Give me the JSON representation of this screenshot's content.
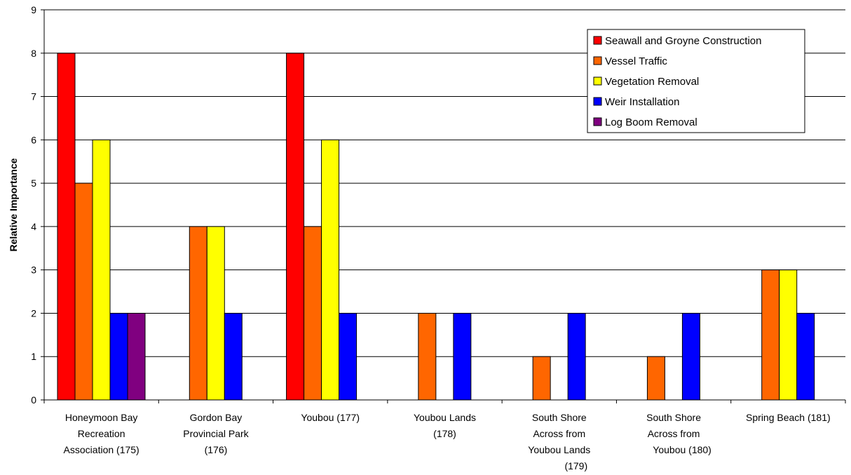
{
  "chart_data": {
    "type": "bar",
    "categories": [
      [
        "Honeymoon Bay",
        "Recreation",
        "Association (175)"
      ],
      [
        "Gordon Bay",
        "Provincial Park",
        "(176)"
      ],
      [
        "Youbou (177)"
      ],
      [
        "Youbou Lands",
        "(178)"
      ],
      [
        "South Shore",
        "Across from",
        "Youbou Lands",
        "(179)"
      ],
      [
        "South Shore",
        "Across from",
        "Youbou (180)"
      ],
      [
        "Spring Beach (181)"
      ]
    ],
    "series": [
      {
        "name": "Seawall and Groyne Construction",
        "color": "#ff0000",
        "values": [
          8,
          0,
          8,
          0,
          0,
          0,
          0
        ]
      },
      {
        "name": "Vessel Traffic",
        "color": "#ff6600",
        "values": [
          5,
          4,
          4,
          2,
          1,
          1,
          3
        ]
      },
      {
        "name": "Vegetation Removal",
        "color": "#ffff00",
        "values": [
          6,
          4,
          6,
          0,
          0,
          0,
          3
        ]
      },
      {
        "name": "Weir Installation",
        "color": "#0000ff",
        "values": [
          2,
          2,
          2,
          2,
          2,
          2,
          2
        ]
      },
      {
        "name": "Log Boom Removal",
        "color": "#800080",
        "values": [
          2,
          0,
          0,
          0,
          0,
          0,
          0
        ]
      }
    ],
    "title": "",
    "xlabel": "",
    "ylabel": "Relative Importance",
    "ylim": [
      0,
      9
    ],
    "yticks": [
      "0",
      "1",
      "2",
      "3",
      "4",
      "5",
      "6",
      "7",
      "8",
      "9"
    ],
    "grid": true,
    "legend_position": "top-right"
  }
}
